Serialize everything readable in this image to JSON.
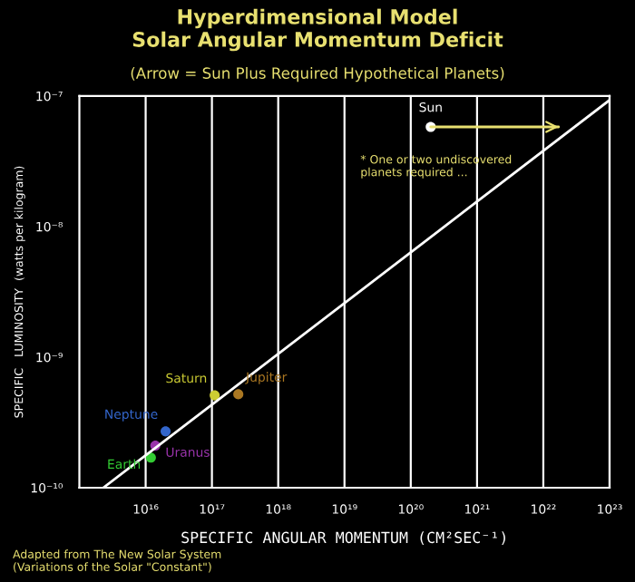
{
  "chart_data": {
    "type": "scatter",
    "title": "Hyperdimensional Model\nSolar Angular Momentum Deficit",
    "subtitle": "(Arrow = Sun Plus Required Hypothetical Planets)",
    "xlabel": "SPECIFIC ANGULAR MOMENTUM (CM²SEC⁻¹)",
    "ylabel": "SPECIFIC   LUMINOSITY  (watts per kilogram)",
    "log": "xy",
    "xlim": [
      1000000000000000.0,
      1e+23
    ],
    "xticks": [
      {
        "value": 1e+16,
        "label": "10¹⁶"
      },
      {
        "value": 1e+17,
        "label": "10¹⁷"
      },
      {
        "value": 1e+18,
        "label": "10¹⁸"
      },
      {
        "value": 1e+19,
        "label": "10¹⁹"
      },
      {
        "value": 1e+20,
        "label": "10²⁰"
      },
      {
        "value": 1e+21,
        "label": "10²¹"
      },
      {
        "value": 1e+22,
        "label": "10²²"
      },
      {
        "value": 1e+23,
        "label": "10²³"
      }
    ],
    "ylim": [
      1e-10,
      1e-07
    ],
    "yticks": [
      {
        "value": 1e-10,
        "label": "10⁻¹⁰"
      },
      {
        "value": 1e-09,
        "label": "10⁻⁹"
      },
      {
        "value": 1e-08,
        "label": "10⁻⁸"
      },
      {
        "value": 1e-07,
        "label": "10⁻⁷"
      }
    ],
    "grid": "x",
    "marker": "circle",
    "series": [
      {
        "type": "line",
        "marker": "none",
        "color": "#ffffff",
        "x": [
          2300000000000000.0,
          1e+23
        ],
        "values": [
          1e-10,
          9.3e-08
        ]
      },
      {
        "name": "Earth",
        "color": "#33cc33",
        "x": [
          1.2e+16
        ],
        "values": [
          1.7e-10
        ]
      },
      {
        "name": "Uranus",
        "color": "#9933aa",
        "x": [
          1.4e+16
        ],
        "values": [
          2.1e-10
        ]
      },
      {
        "name": "Neptune",
        "color": "#3366cc",
        "x": [
          2e+16
        ],
        "values": [
          2.7e-10
        ]
      },
      {
        "name": "Saturn",
        "color": "#cccc33",
        "x": [
          1.1e+17
        ],
        "values": [
          5.1e-10
        ]
      },
      {
        "name": "Jupiter",
        "color": "#aa7722",
        "x": [
          2.5e+17
        ],
        "values": [
          5.2e-10
        ]
      },
      {
        "name": "Sun",
        "color": "#ffffff",
        "x": [
          2e+20
        ],
        "values": [
          5.8e-08
        ]
      },
      {
        "type": "line",
        "marker": "none",
        "color": "#e8e070",
        "x": [
          2e+20,
          1.7e+22
        ],
        "values": [
          5.8e-08,
          5.8e-08
        ]
      }
    ],
    "annotations": [
      "* One or two undiscovered\nplanets required ...",
      "Adapted from The New Solar System\n(Variations of the Solar \"Constant\")"
    ]
  }
}
